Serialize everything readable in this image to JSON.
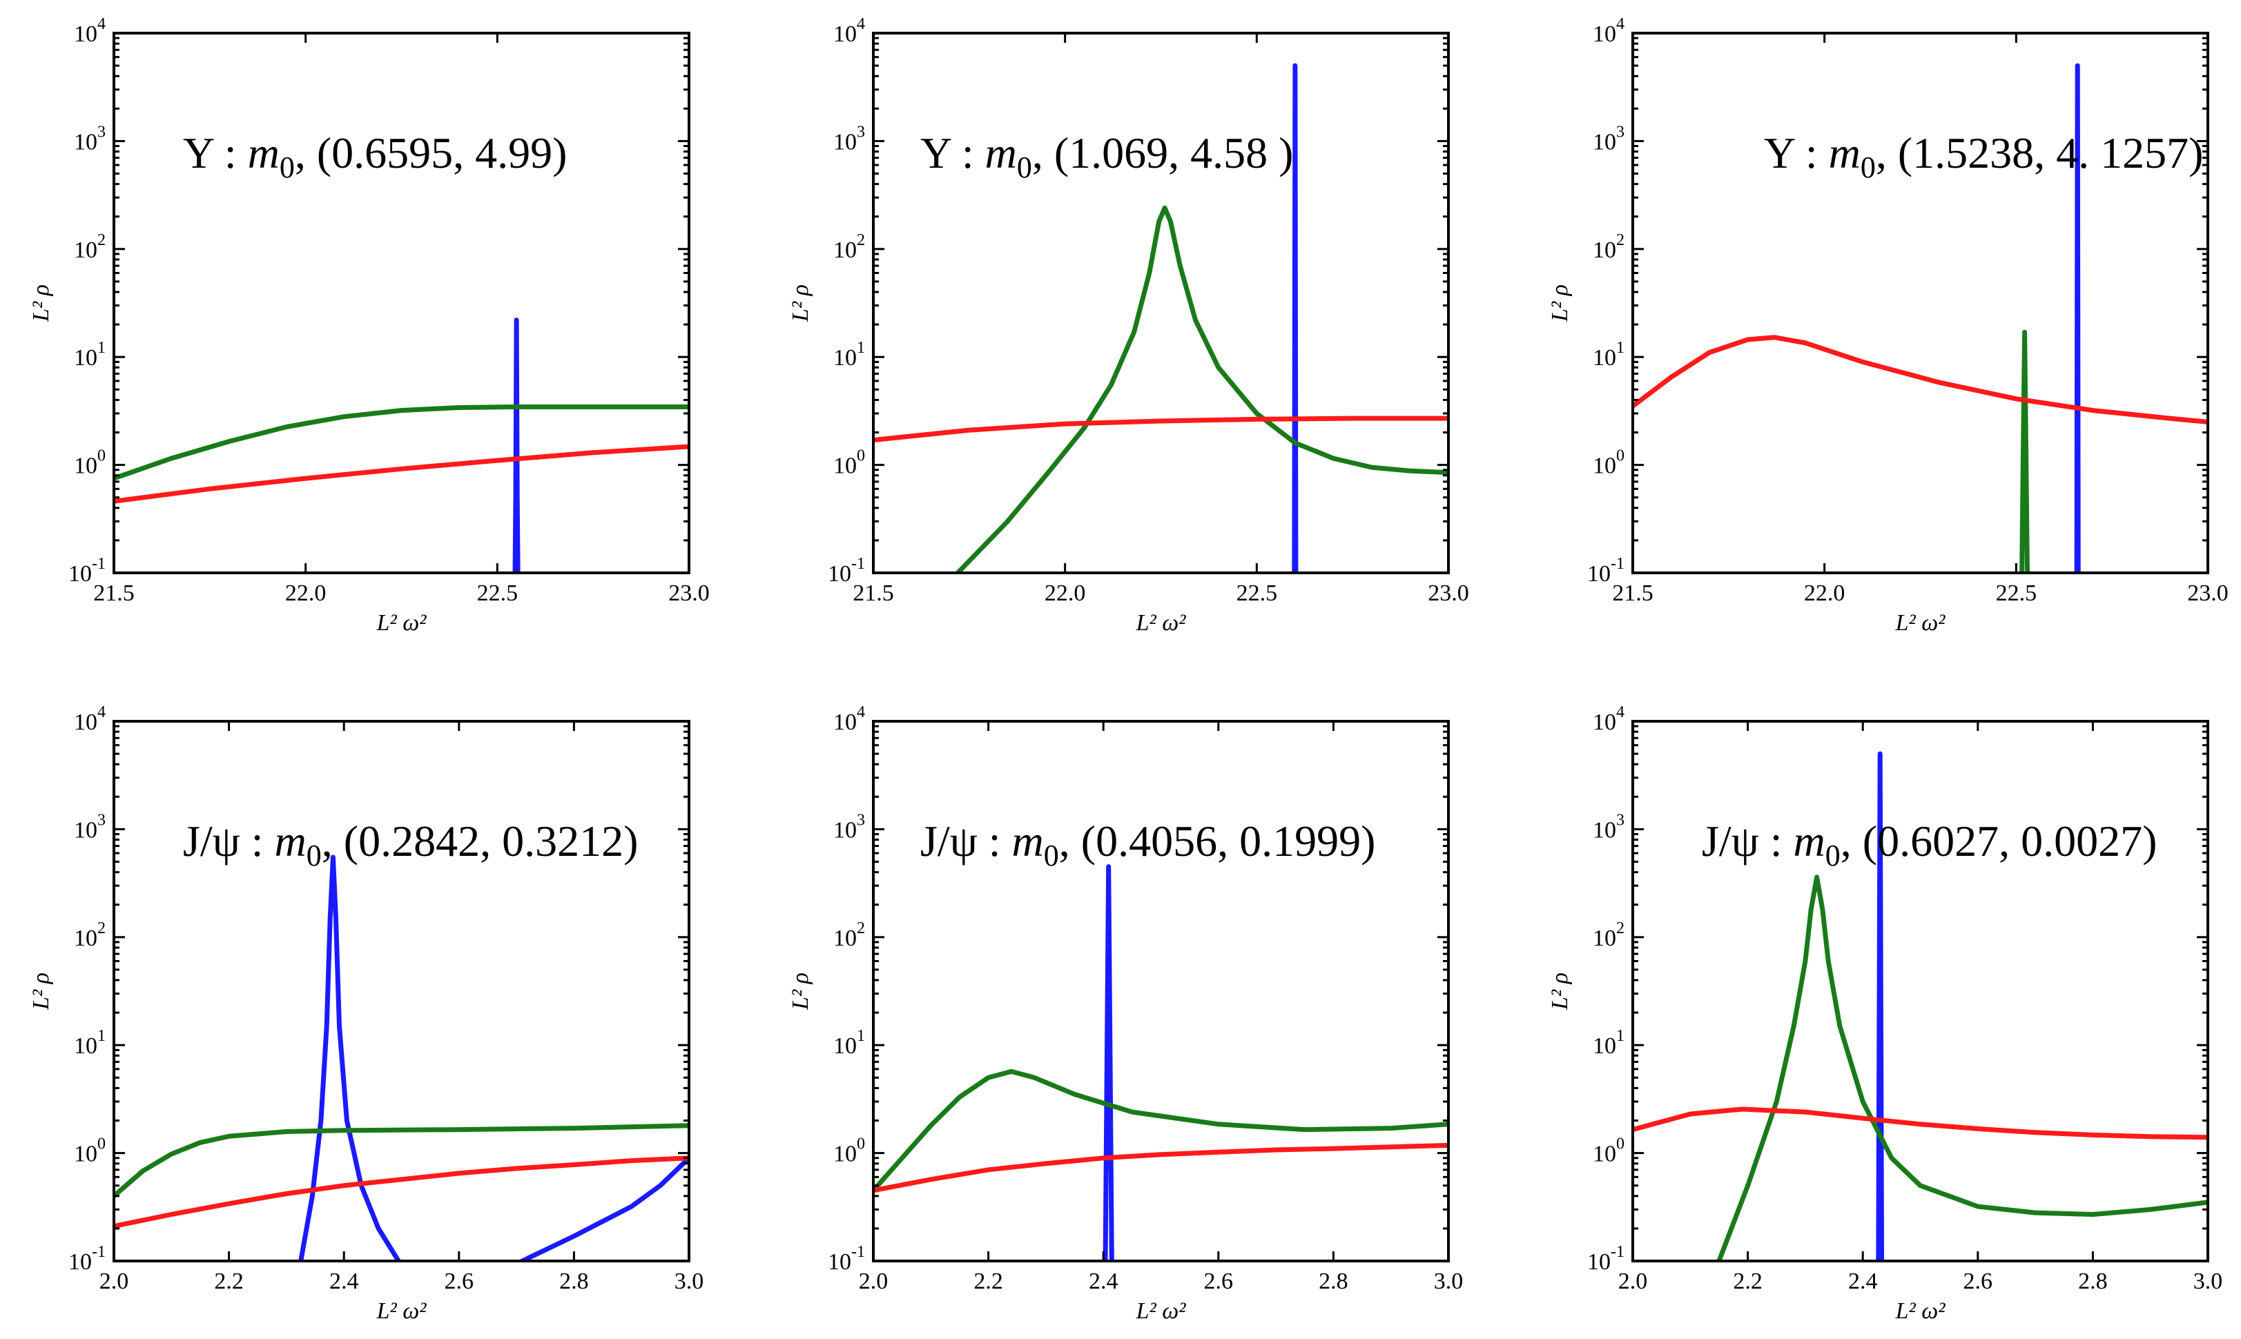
{
  "figure": {
    "rows": 2,
    "cols": 3
  },
  "colors": {
    "blue": "#1a1aff",
    "green": "#1a7a1a",
    "red": "#ff1a1a"
  },
  "chart_data": [
    {
      "type": "line",
      "xlabel": "L² ω²",
      "ylabel": "L² ρ",
      "xlim": [
        21.5,
        23.0
      ],
      "ylim": [
        0.1,
        10000
      ],
      "yscale": "log",
      "xticks": [
        21.5,
        22.0,
        22.5,
        23.0
      ],
      "xtick_labels": [
        "21.5",
        "22.0",
        "22.5",
        "23.0"
      ],
      "yticks": [
        0.1,
        1,
        10,
        100,
        1000,
        10000
      ],
      "ytick_labels": [
        {
          "base": "10",
          "exp": "-1"
        },
        {
          "base": "10",
          "exp": "0"
        },
        {
          "base": "10",
          "exp": "1"
        },
        {
          "base": "10",
          "exp": "2"
        },
        {
          "base": "10",
          "exp": "3"
        },
        {
          "base": "10",
          "exp": "4"
        }
      ],
      "annotation": {
        "prefix": "Υ : ",
        "m": "m",
        "sub": "0",
        "rest": ", (0.6595, 4.99)"
      },
      "series": [
        {
          "name": "blue",
          "color": "#1a1aff",
          "x": [
            22.546,
            22.548,
            22.55,
            22.552,
            22.554
          ],
          "y": [
            0.08,
            0.5,
            22,
            0.5,
            0.08
          ]
        },
        {
          "name": "green",
          "color": "#1a7a1a",
          "x": [
            21.5,
            21.65,
            21.8,
            21.95,
            22.1,
            22.25,
            22.4,
            22.55,
            22.7,
            22.85,
            23.0
          ],
          "y": [
            0.75,
            1.15,
            1.65,
            2.25,
            2.8,
            3.2,
            3.4,
            3.45,
            3.45,
            3.45,
            3.45
          ]
        },
        {
          "name": "red",
          "color": "#ff1a1a",
          "x": [
            21.5,
            21.75,
            22.0,
            22.25,
            22.5,
            22.75,
            23.0
          ],
          "y": [
            0.46,
            0.6,
            0.75,
            0.92,
            1.1,
            1.3,
            1.48
          ]
        }
      ]
    },
    {
      "type": "line",
      "xlabel": "L² ω²",
      "ylabel": "L² ρ",
      "xlim": [
        21.5,
        23.0
      ],
      "ylim": [
        0.1,
        10000
      ],
      "yscale": "log",
      "xticks": [
        21.5,
        22.0,
        22.5,
        23.0
      ],
      "xtick_labels": [
        "21.5",
        "22.0",
        "22.5",
        "23.0"
      ],
      "yticks": [
        0.1,
        1,
        10,
        100,
        1000,
        10000
      ],
      "ytick_labels": [
        {
          "base": "10",
          "exp": "-1"
        },
        {
          "base": "10",
          "exp": "0"
        },
        {
          "base": "10",
          "exp": "1"
        },
        {
          "base": "10",
          "exp": "2"
        },
        {
          "base": "10",
          "exp": "3"
        },
        {
          "base": "10",
          "exp": "4"
        }
      ],
      "annotation": {
        "prefix": "Υ : ",
        "m": "m",
        "sub": "0",
        "rest": ", (1.069, 4.58 )"
      },
      "series": [
        {
          "name": "blue",
          "color": "#1a1aff",
          "x": [
            22.598,
            22.6,
            22.602
          ],
          "y": [
            0.05,
            5000,
            0.05
          ]
        },
        {
          "name": "green",
          "color": "#1a7a1a",
          "x": [
            21.72,
            21.85,
            21.95,
            22.05,
            22.12,
            22.18,
            22.22,
            22.245,
            22.26,
            22.275,
            22.3,
            22.34,
            22.4,
            22.5,
            22.6,
            22.7,
            22.8,
            22.9,
            23.0
          ],
          "y": [
            0.1,
            0.3,
            0.8,
            2.2,
            5.5,
            17,
            60,
            180,
            240,
            180,
            70,
            22,
            8,
            3,
            1.6,
            1.15,
            0.95,
            0.88,
            0.85
          ]
        },
        {
          "name": "red",
          "color": "#ff1a1a",
          "x": [
            21.5,
            21.75,
            22.0,
            22.25,
            22.5,
            22.75,
            23.0
          ],
          "y": [
            1.7,
            2.1,
            2.4,
            2.55,
            2.65,
            2.7,
            2.7
          ]
        }
      ]
    },
    {
      "type": "line",
      "xlabel": "L² ω²",
      "ylabel": "L² ρ",
      "xlim": [
        21.5,
        23.0
      ],
      "ylim": [
        0.1,
        10000
      ],
      "yscale": "log",
      "xticks": [
        21.5,
        22.0,
        22.5,
        23.0
      ],
      "xtick_labels": [
        "21.5",
        "22.0",
        "22.5",
        "23.0"
      ],
      "yticks": [
        0.1,
        1,
        10,
        100,
        1000,
        10000
      ],
      "ytick_labels": [
        {
          "base": "10",
          "exp": "-1"
        },
        {
          "base": "10",
          "exp": "0"
        },
        {
          "base": "10",
          "exp": "1"
        },
        {
          "base": "10",
          "exp": "2"
        },
        {
          "base": "10",
          "exp": "3"
        },
        {
          "base": "10",
          "exp": "4"
        }
      ],
      "annotation": {
        "prefix": "Υ : ",
        "m": "m",
        "sub": "0",
        "rest": ", (1.5238, 4. 1257)"
      },
      "series": [
        {
          "name": "blue",
          "color": "#1a1aff",
          "x": [
            22.658,
            22.66,
            22.662
          ],
          "y": [
            0.05,
            5000,
            0.05
          ]
        },
        {
          "name": "green",
          "color": "#1a7a1a",
          "x": [
            22.514,
            22.518,
            22.522,
            22.526,
            22.53
          ],
          "y": [
            0.05,
            1,
            17,
            1,
            0.05
          ]
        },
        {
          "name": "red",
          "color": "#ff1a1a",
          "x": [
            21.5,
            21.6,
            21.7,
            21.8,
            21.87,
            21.95,
            22.1,
            22.3,
            22.5,
            22.7,
            22.9,
            23.0
          ],
          "y": [
            3.5,
            6.5,
            11,
            14.5,
            15.2,
            13.5,
            9,
            5.8,
            4.1,
            3.2,
            2.7,
            2.5
          ]
        }
      ]
    },
    {
      "type": "line",
      "xlabel": "L² ω²",
      "ylabel": "L² ρ",
      "xlim": [
        2.0,
        3.0
      ],
      "ylim": [
        0.1,
        10000
      ],
      "yscale": "log",
      "xticks": [
        2.0,
        2.2,
        2.4,
        2.6,
        2.8,
        3.0
      ],
      "xtick_labels": [
        "2.0",
        "2.2",
        "2.4",
        "2.6",
        "2.8",
        "3.0"
      ],
      "yticks": [
        0.1,
        1,
        10,
        100,
        1000,
        10000
      ],
      "ytick_labels": [
        {
          "base": "10",
          "exp": "-1"
        },
        {
          "base": "10",
          "exp": "0"
        },
        {
          "base": "10",
          "exp": "1"
        },
        {
          "base": "10",
          "exp": "2"
        },
        {
          "base": "10",
          "exp": "3"
        },
        {
          "base": "10",
          "exp": "4"
        }
      ],
      "annotation": {
        "prefix": "J/ψ : ",
        "m": "m",
        "sub": "0",
        "rest": ", (0.2842, 0.3212)"
      },
      "series": [
        {
          "name": "blue",
          "color": "#1a1aff",
          "x": [
            2.325,
            2.345,
            2.36,
            2.37,
            2.376,
            2.381,
            2.386,
            2.392,
            2.405,
            2.43,
            2.46,
            2.495
          ],
          "y": [
            0.1,
            0.4,
            2,
            15,
            150,
            550,
            150,
            15,
            2,
            0.5,
            0.2,
            0.1
          ]
        },
        {
          "name": "blue-tail",
          "color": "#1a1aff",
          "x": [
            2.71,
            2.8,
            2.9,
            2.95,
            3.0
          ],
          "y": [
            0.1,
            0.17,
            0.32,
            0.5,
            0.9
          ]
        },
        {
          "name": "green",
          "color": "#1a7a1a",
          "x": [
            2.0,
            2.05,
            2.1,
            2.15,
            2.2,
            2.3,
            2.4,
            2.6,
            2.8,
            3.0
          ],
          "y": [
            0.4,
            0.68,
            0.98,
            1.25,
            1.43,
            1.58,
            1.62,
            1.65,
            1.7,
            1.8
          ]
        },
        {
          "name": "red",
          "color": "#ff1a1a",
          "x": [
            2.0,
            2.1,
            2.2,
            2.3,
            2.4,
            2.5,
            2.6,
            2.7,
            2.8,
            2.9,
            3.0
          ],
          "y": [
            0.21,
            0.27,
            0.34,
            0.42,
            0.5,
            0.57,
            0.65,
            0.72,
            0.78,
            0.85,
            0.9
          ]
        }
      ]
    },
    {
      "type": "line",
      "xlabel": "L² ω²",
      "ylabel": "L² ρ",
      "xlim": [
        2.0,
        3.0
      ],
      "ylim": [
        0.1,
        10000
      ],
      "yscale": "log",
      "xticks": [
        2.0,
        2.2,
        2.4,
        2.6,
        2.8,
        3.0
      ],
      "xtick_labels": [
        "2.0",
        "2.2",
        "2.4",
        "2.6",
        "2.8",
        "3.0"
      ],
      "yticks": [
        0.1,
        1,
        10,
        100,
        1000,
        10000
      ],
      "ytick_labels": [
        {
          "base": "10",
          "exp": "-1"
        },
        {
          "base": "10",
          "exp": "0"
        },
        {
          "base": "10",
          "exp": "1"
        },
        {
          "base": "10",
          "exp": "2"
        },
        {
          "base": "10",
          "exp": "3"
        },
        {
          "base": "10",
          "exp": "4"
        }
      ],
      "annotation": {
        "prefix": "J/ψ : ",
        "m": "m",
        "sub": "0",
        "rest": ",   (0.4056, 0.1999)"
      },
      "series": [
        {
          "name": "blue",
          "color": "#1a1aff",
          "x": [
            2.403,
            2.406,
            2.409,
            2.412,
            2.415
          ],
          "y": [
            0.05,
            5,
            450,
            5,
            0.05
          ]
        },
        {
          "name": "green",
          "color": "#1a7a1a",
          "x": [
            2.0,
            2.05,
            2.1,
            2.15,
            2.2,
            2.24,
            2.28,
            2.35,
            2.45,
            2.6,
            2.75,
            2.9,
            3.0
          ],
          "y": [
            0.45,
            0.9,
            1.8,
            3.3,
            5.0,
            5.7,
            5.0,
            3.5,
            2.4,
            1.85,
            1.65,
            1.7,
            1.85
          ]
        },
        {
          "name": "red",
          "color": "#ff1a1a",
          "x": [
            2.0,
            2.1,
            2.2,
            2.3,
            2.4,
            2.5,
            2.6,
            2.7,
            2.8,
            2.9,
            3.0
          ],
          "y": [
            0.45,
            0.57,
            0.7,
            0.8,
            0.9,
            0.97,
            1.02,
            1.07,
            1.1,
            1.14,
            1.18
          ]
        }
      ]
    },
    {
      "type": "line",
      "xlabel": "L² ω²",
      "ylabel": "L² ρ",
      "xlim": [
        2.0,
        3.0
      ],
      "ylim": [
        0.1,
        10000
      ],
      "yscale": "log",
      "xticks": [
        2.0,
        2.2,
        2.4,
        2.6,
        2.8,
        3.0
      ],
      "xtick_labels": [
        "2.0",
        "2.2",
        "2.4",
        "2.6",
        "2.8",
        "3.0"
      ],
      "yticks": [
        0.1,
        1,
        10,
        100,
        1000,
        10000
      ],
      "ytick_labels": [
        {
          "base": "10",
          "exp": "-1"
        },
        {
          "base": "10",
          "exp": "0"
        },
        {
          "base": "10",
          "exp": "1"
        },
        {
          "base": "10",
          "exp": "2"
        },
        {
          "base": "10",
          "exp": "3"
        },
        {
          "base": "10",
          "exp": "4"
        }
      ],
      "annotation": {
        "prefix": "J/ψ : ",
        "m": "m",
        "sub": "0",
        "rest": ", (0.6027, 0.0027)"
      },
      "series": [
        {
          "name": "blue",
          "color": "#1a1aff",
          "x": [
            2.427,
            2.43,
            2.433
          ],
          "y": [
            0.05,
            5000,
            0.05
          ]
        },
        {
          "name": "green",
          "color": "#1a7a1a",
          "x": [
            2.15,
            2.2,
            2.25,
            2.28,
            2.3,
            2.31,
            2.32,
            2.33,
            2.34,
            2.36,
            2.4,
            2.45,
            2.5,
            2.6,
            2.7,
            2.8,
            2.9,
            3.0
          ],
          "y": [
            0.1,
            0.5,
            3,
            15,
            60,
            180,
            360,
            180,
            60,
            15,
            3,
            0.9,
            0.5,
            0.32,
            0.28,
            0.27,
            0.3,
            0.35
          ]
        },
        {
          "name": "red",
          "color": "#ff1a1a",
          "x": [
            2.0,
            2.1,
            2.19,
            2.3,
            2.4,
            2.5,
            2.6,
            2.7,
            2.8,
            2.9,
            3.0
          ],
          "y": [
            1.65,
            2.3,
            2.55,
            2.4,
            2.1,
            1.85,
            1.68,
            1.55,
            1.47,
            1.42,
            1.4
          ]
        }
      ]
    }
  ]
}
